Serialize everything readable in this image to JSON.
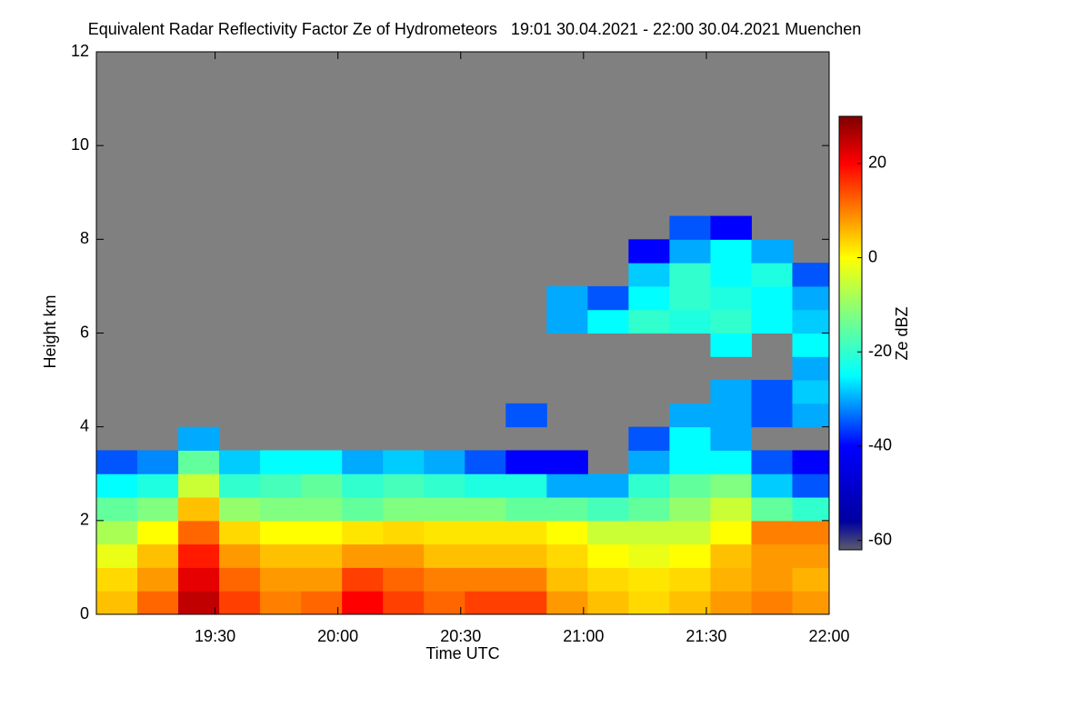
{
  "chart_data": {
    "type": "heatmap",
    "title": "Equivalent Radar Reflectivity Factor Ze of Hydrometeors   19:01 30.04.2021 - 22:00 30.04.2021 Muenchen",
    "x_label": "Time UTC",
    "y_label": "Height km",
    "colorbar_label": "Ze dBZ",
    "xlim": [
      19.0167,
      22.0
    ],
    "xticks": [
      {
        "value": 19.5,
        "label": "19:30"
      },
      {
        "value": 20.0,
        "label": "20:00"
      },
      {
        "value": 20.5,
        "label": "20:30"
      },
      {
        "value": 21.0,
        "label": "21:00"
      },
      {
        "value": 21.5,
        "label": "21:30"
      },
      {
        "value": 22.0,
        "label": "22:00"
      }
    ],
    "ylim": [
      0,
      12
    ],
    "yticks": [
      0,
      2,
      4,
      6,
      8,
      10,
      12
    ],
    "clim": [
      -62,
      30
    ],
    "cticks": [
      -60,
      -40,
      -20,
      0,
      20
    ],
    "background": "#808080",
    "colorscale": [
      [
        -62,
        "#5c5c6a"
      ],
      [
        -56,
        "#0000a0"
      ],
      [
        -40,
        "#0000ff"
      ],
      [
        -25,
        "#00ffff"
      ],
      [
        -12,
        "#80ff80"
      ],
      [
        0,
        "#ffff00"
      ],
      [
        10,
        "#ff8000"
      ],
      [
        20,
        "#ff0000"
      ],
      [
        30,
        "#800000"
      ]
    ],
    "xbins": [
      19.0167,
      19.1833,
      19.35,
      19.5167,
      19.6833,
      19.85,
      20.0167,
      20.1833,
      20.35,
      20.5167,
      20.6833,
      20.85,
      21.0167,
      21.1833,
      21.35,
      21.5167,
      21.6833,
      21.85,
      22.0
    ],
    "ybins": [
      0,
      0.5,
      1,
      1.5,
      2,
      2.5,
      3,
      3.5,
      4,
      4.5,
      5,
      5.5,
      6,
      6.5,
      7,
      7.5,
      8,
      8.5
    ],
    "values": [
      [
        5,
        12,
        25,
        15,
        10,
        12,
        20,
        15,
        12,
        15,
        15,
        8,
        5,
        3,
        5,
        8,
        10,
        8
      ],
      [
        3,
        8,
        22,
        12,
        8,
        8,
        15,
        12,
        10,
        10,
        10,
        5,
        3,
        2,
        3,
        6,
        8,
        6
      ],
      [
        -2,
        5,
        18,
        8,
        5,
        5,
        8,
        8,
        5,
        5,
        5,
        3,
        0,
        -2,
        0,
        5,
        8,
        8
      ],
      [
        -8,
        0,
        12,
        3,
        0,
        0,
        2,
        3,
        2,
        2,
        2,
        0,
        -5,
        -5,
        -5,
        0,
        10,
        10
      ],
      [
        -15,
        -12,
        5,
        -10,
        -12,
        -12,
        -15,
        -12,
        -12,
        -12,
        -15,
        -15,
        -18,
        -15,
        -10,
        -5,
        -15,
        -20
      ],
      [
        -25,
        -22,
        -5,
        -20,
        -18,
        -15,
        -20,
        -18,
        -20,
        -22,
        -22,
        -30,
        -30,
        -20,
        -15,
        -12,
        -28,
        -35
      ],
      [
        -35,
        -32,
        -15,
        -28,
        -25,
        -25,
        -30,
        -28,
        -30,
        -35,
        -40,
        -40,
        null,
        -30,
        -25,
        -25,
        -35,
        -40
      ],
      [
        null,
        null,
        -30,
        null,
        null,
        null,
        null,
        null,
        null,
        null,
        null,
        null,
        null,
        -35,
        -25,
        -30,
        null,
        null
      ],
      [
        null,
        null,
        null,
        null,
        null,
        null,
        null,
        null,
        null,
        null,
        -35,
        null,
        null,
        null,
        -30,
        -30,
        -35,
        -30
      ],
      [
        null,
        null,
        null,
        null,
        null,
        null,
        null,
        null,
        null,
        null,
        null,
        null,
        null,
        null,
        null,
        -30,
        -35,
        -28
      ],
      [
        null,
        null,
        null,
        null,
        null,
        null,
        null,
        null,
        null,
        null,
        null,
        null,
        null,
        null,
        null,
        null,
        null,
        -30
      ],
      [
        null,
        null,
        null,
        null,
        null,
        null,
        null,
        null,
        null,
        null,
        null,
        null,
        null,
        null,
        null,
        -25,
        null,
        -25
      ],
      [
        null,
        null,
        null,
        null,
        null,
        null,
        null,
        null,
        null,
        null,
        null,
        -30,
        -25,
        -20,
        -22,
        -20,
        -25,
        -28
      ],
      [
        null,
        null,
        null,
        null,
        null,
        null,
        null,
        null,
        null,
        null,
        null,
        -30,
        -35,
        -25,
        -20,
        -22,
        -25,
        -30
      ],
      [
        null,
        null,
        null,
        null,
        null,
        null,
        null,
        null,
        null,
        null,
        null,
        null,
        null,
        -28,
        -20,
        -25,
        -22,
        -35
      ],
      [
        null,
        null,
        null,
        null,
        null,
        null,
        null,
        null,
        null,
        null,
        null,
        null,
        null,
        -40,
        -30,
        -25,
        -30,
        null
      ],
      [
        null,
        null,
        null,
        null,
        null,
        null,
        null,
        null,
        null,
        null,
        null,
        null,
        null,
        null,
        -35,
        -40,
        null,
        null
      ]
    ]
  }
}
